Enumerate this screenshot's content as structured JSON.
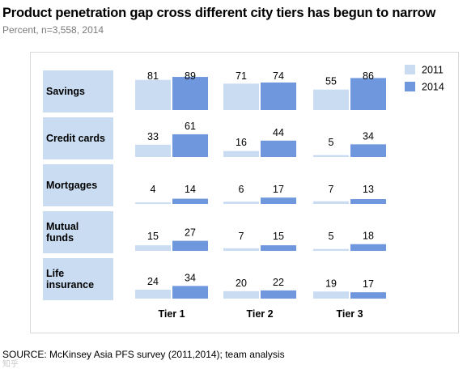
{
  "header": {
    "title": "Product penetration gap cross different city tiers has begun to narrow",
    "subtitle": "Percent, n=3,558, 2014"
  },
  "footer": {
    "source": "SOURCE: McKinsey Asia PFS survey (2011,2014); team analysis",
    "watermark": "知乎"
  },
  "colors": {
    "panel": "#c9dcf2",
    "bar_2011": "#c9dcf2",
    "bar_2014": "#6f97dd",
    "frame": "#d9d9d9"
  },
  "chart_data": {
    "type": "bar",
    "title": "Product penetration gap cross different city tiers has begun to narrow",
    "subtitle": "Percent, n=3,558, 2014",
    "categories": [
      "Tier 1",
      "Tier 2",
      "Tier 3"
    ],
    "products": [
      {
        "label": "Savings",
        "values_2011": [
          81,
          71,
          55
        ],
        "values_2014": [
          89,
          74,
          86
        ]
      },
      {
        "label": "Credit cards",
        "values_2011": [
          33,
          16,
          5
        ],
        "values_2014": [
          61,
          44,
          34
        ]
      },
      {
        "label": "Mortgages",
        "values_2011": [
          4,
          6,
          7
        ],
        "values_2014": [
          14,
          17,
          13
        ]
      },
      {
        "label": "Mutual\nfunds",
        "values_2011": [
          15,
          7,
          5
        ],
        "values_2014": [
          27,
          15,
          18
        ]
      },
      {
        "label": "Life\ninsurance",
        "values_2011": [
          24,
          20,
          19
        ],
        "values_2014": [
          34,
          22,
          17
        ]
      }
    ],
    "series": [
      {
        "name": "2011",
        "color": "#c9dcf2"
      },
      {
        "name": "2014",
        "color": "#6f97dd"
      }
    ],
    "ylim": [
      0,
      100
    ],
    "legend": "top-right",
    "grid": false
  }
}
